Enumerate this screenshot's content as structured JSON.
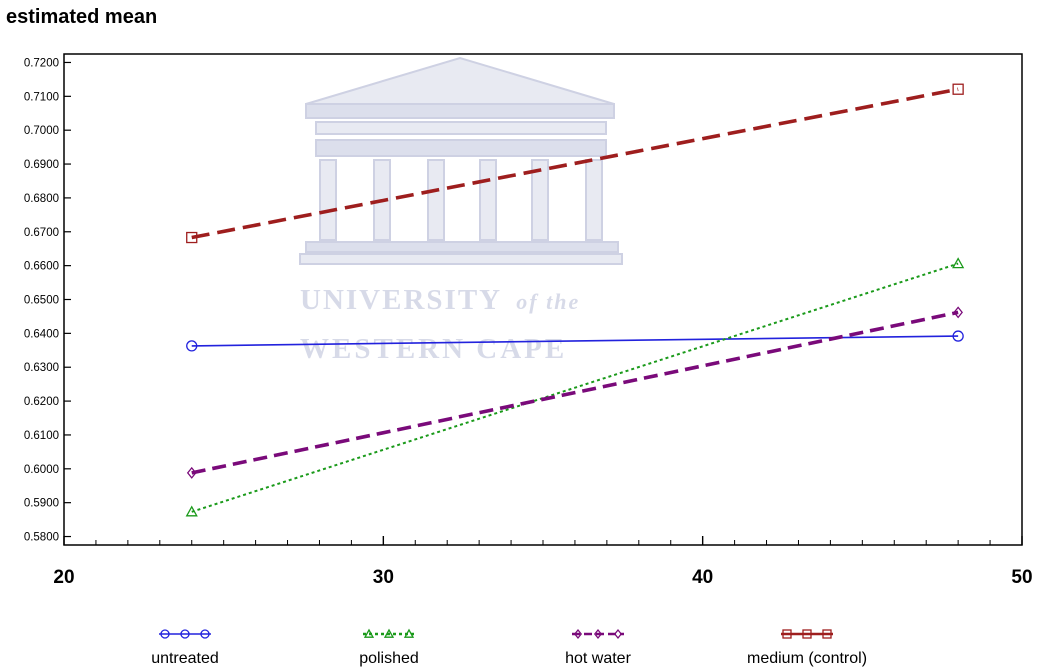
{
  "chart_data": {
    "type": "line",
    "title": "estimated mean",
    "xlabel": "",
    "ylabel": "",
    "xlim": [
      20,
      50
    ],
    "ylim": [
      0.5775,
      0.7225
    ],
    "x_ticks": [
      "20",
      "30",
      "40",
      "50"
    ],
    "y_ticks": [
      "0.5800",
      "0.5900",
      "0.6000",
      "0.6100",
      "0.6200",
      "0.6300",
      "0.6400",
      "0.6500",
      "0.6600",
      "0.6700",
      "0.6800",
      "0.6900",
      "0.7000",
      "0.7100",
      "0.7200"
    ],
    "grid": false,
    "legend_position": "bottom",
    "series": [
      {
        "name": "untreated",
        "x": [
          24,
          48
        ],
        "y": [
          0.6363,
          0.6392
        ],
        "color": "#2222dd",
        "dash": "solid",
        "marker": "circle"
      },
      {
        "name": "polished",
        "x": [
          24,
          48
        ],
        "y": [
          0.5873,
          0.6606
        ],
        "color": "#1a9a1a",
        "dash": "dotted",
        "marker": "triangle"
      },
      {
        "name": "hot water",
        "x": [
          24,
          48
        ],
        "y": [
          0.5988,
          0.6462
        ],
        "color": "#7a0a7a",
        "dash": "dashed",
        "marker": "diamond"
      },
      {
        "name": "medium (control)",
        "x": [
          24,
          48
        ],
        "y": [
          0.6683,
          0.7121
        ],
        "color": "#9e1e1e",
        "dash": "longdash",
        "marker": "square"
      }
    ]
  },
  "watermark": {
    "line1": "UNIVERSITY",
    "line1_suffix": "of the",
    "line2": "WESTERN CAPE"
  }
}
